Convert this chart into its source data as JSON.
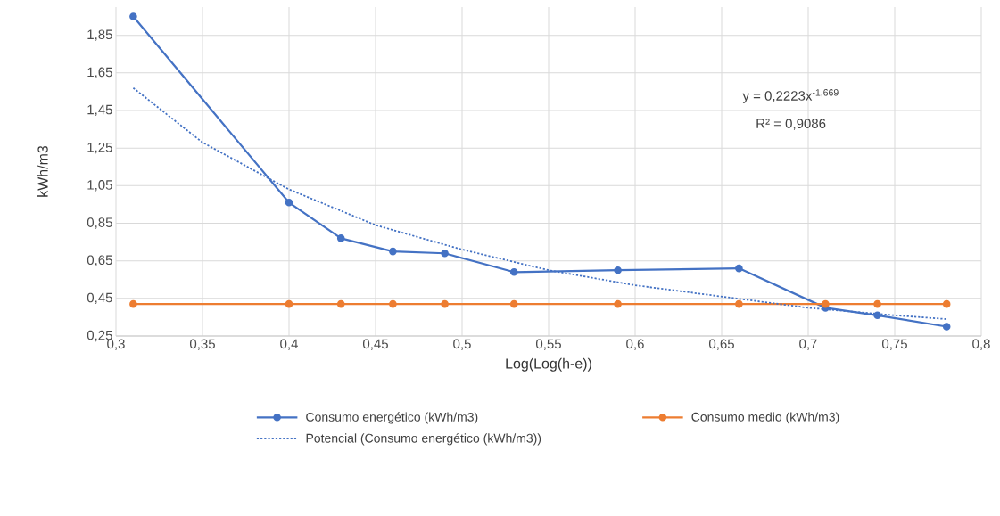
{
  "chart_data": {
    "type": "line",
    "xlabel": "Log(Log(h-e))",
    "ylabel": "kWh/m3",
    "xlim": [
      0.3,
      0.8
    ],
    "ylim": [
      0.25,
      2.0
    ],
    "xticks": [
      {
        "value": 0.3,
        "label": "0,3"
      },
      {
        "value": 0.35,
        "label": "0,35"
      },
      {
        "value": 0.4,
        "label": "0,4"
      },
      {
        "value": 0.45,
        "label": "0,45"
      },
      {
        "value": 0.5,
        "label": "0,5"
      },
      {
        "value": 0.55,
        "label": "0,55"
      },
      {
        "value": 0.6,
        "label": "0,6"
      },
      {
        "value": 0.65,
        "label": "0,65"
      },
      {
        "value": 0.7,
        "label": "0,7"
      },
      {
        "value": 0.75,
        "label": "0,75"
      },
      {
        "value": 0.8,
        "label": "0,8"
      }
    ],
    "yticks": [
      {
        "value": 0.25,
        "label": "0,25"
      },
      {
        "value": 0.45,
        "label": "0,45"
      },
      {
        "value": 0.65,
        "label": "0,65"
      },
      {
        "value": 0.85,
        "label": "0,85"
      },
      {
        "value": 1.05,
        "label": "1,05"
      },
      {
        "value": 1.25,
        "label": "1,25"
      },
      {
        "value": 1.45,
        "label": "1,45"
      },
      {
        "value": 1.65,
        "label": "1,65"
      },
      {
        "value": 1.85,
        "label": "1,85"
      }
    ],
    "x": [
      0.31,
      0.4,
      0.43,
      0.46,
      0.49,
      0.53,
      0.59,
      0.66,
      0.71,
      0.74,
      0.78
    ],
    "series": [
      {
        "name": "Consumo energético (kWh/m3)",
        "color": "#4472c4",
        "marker": "circle",
        "line_style": "solid",
        "values": [
          1.95,
          0.96,
          0.77,
          0.7,
          0.69,
          0.59,
          0.6,
          0.61,
          0.4,
          0.36,
          0.3
        ]
      },
      {
        "name": "Consumo medio (kWh/m3)",
        "color": "#ed7d31",
        "marker": "circle",
        "line_style": "solid",
        "values": [
          0.42,
          0.42,
          0.42,
          0.42,
          0.42,
          0.42,
          0.42,
          0.42,
          0.42,
          0.42,
          0.42
        ]
      },
      {
        "name": "Potencial (Consumo energético (kWh/m3))",
        "color": "#4472c4",
        "marker": "none",
        "line_style": "dotted",
        "x": [
          0.31,
          0.35,
          0.4,
          0.45,
          0.5,
          0.55,
          0.6,
          0.65,
          0.7,
          0.75,
          0.78
        ],
        "values": [
          1.57,
          1.28,
          1.03,
          0.84,
          0.71,
          0.6,
          0.52,
          0.46,
          0.4,
          0.36,
          0.34
        ]
      }
    ],
    "annotations": [
      "y = 0,2223x$^{-1,669}$",
      "R² = 0,9086"
    ],
    "grid": true,
    "legend": "bottom"
  }
}
